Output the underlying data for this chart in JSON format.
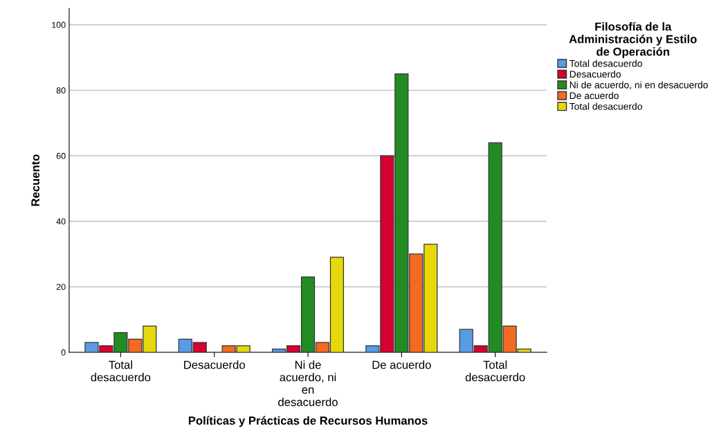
{
  "chart_data": {
    "type": "bar",
    "xlabel": "Políticas y Prácticas de Recursos Humanos",
    "ylabel": "Recuento",
    "legend_title": "Filosofía de la Administración y Estilo de Operación",
    "categories": [
      "Total desacuerdo",
      "Desacuerdo",
      "Ni de acuerdo, ni en desacuerdo",
      "De acuerdo",
      "Total desacuerdo"
    ],
    "series": [
      {
        "name": "Total desacuerdo",
        "color": "#5a9be6",
        "values": [
          3,
          4,
          1,
          2,
          7
        ]
      },
      {
        "name": "Desacuerdo",
        "color": "#d7002e",
        "values": [
          2,
          3,
          2,
          60,
          2
        ]
      },
      {
        "name": "Ni de acuerdo, ni en desacuerdo",
        "color": "#238b23",
        "values": [
          6,
          null,
          23,
          85,
          64
        ]
      },
      {
        "name": "De acuerdo",
        "color": "#f26b21",
        "values": [
          4,
          2,
          3,
          30,
          8
        ]
      },
      {
        "name": "Total desacuerdo",
        "color": "#e6d80a",
        "values": [
          8,
          2,
          29,
          33,
          1
        ]
      }
    ],
    "ylim": [
      0,
      105
    ],
    "yticks": [
      0,
      20,
      40,
      60,
      80,
      100
    ],
    "grid": "y",
    "legend": "right"
  }
}
